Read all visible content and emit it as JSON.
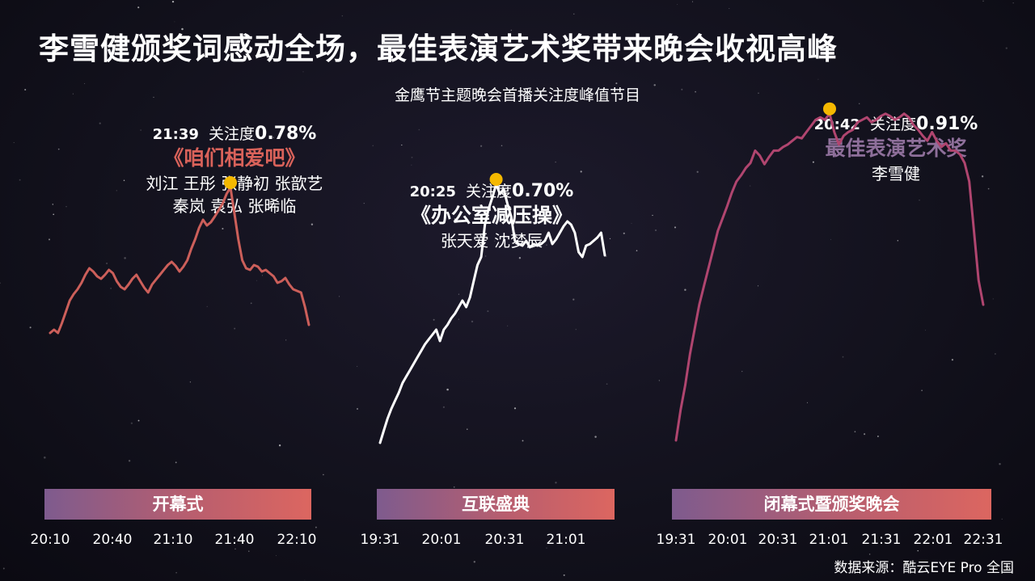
{
  "header": {
    "title": "李雪健颁奖词感动全场，最佳表演艺术奖带来晚会收视高峰",
    "subtitle": "金鹰节主题晚会首播关注度峰值节目"
  },
  "source": "数据来源：酷云EYE Pro 全国",
  "colors": {
    "chart1": "#cc5f5a",
    "chart2": "#ffffff",
    "chart3": "#b0456f",
    "peak": "#f5b800",
    "award_title": "#8e6f9a",
    "prog1": "#d9625a"
  },
  "chart_data": [
    {
      "type": "line",
      "name": "开幕式",
      "x_ticks": [
        "20:10",
        "20:40",
        "21:10",
        "21:40",
        "22:10"
      ],
      "x_range": [
        0,
        120
      ],
      "ylim": [
        0.5,
        0.8
      ],
      "values": [
        0.6,
        0.604,
        0.6,
        0.612,
        0.626,
        0.64,
        0.648,
        0.654,
        0.662,
        0.672,
        0.68,
        0.676,
        0.67,
        0.667,
        0.672,
        0.678,
        0.674,
        0.664,
        0.657,
        0.654,
        0.66,
        0.667,
        0.672,
        0.664,
        0.656,
        0.65,
        0.66,
        0.666,
        0.672,
        0.678,
        0.684,
        0.688,
        0.683,
        0.676,
        0.682,
        0.69,
        0.704,
        0.716,
        0.73,
        0.74,
        0.733,
        0.737,
        0.744,
        0.752,
        0.76,
        0.772,
        0.78,
        0.748,
        0.716,
        0.69,
        0.68,
        0.678,
        0.684,
        0.682,
        0.676,
        0.678,
        0.674,
        0.67,
        0.662,
        0.664,
        0.668,
        0.66,
        0.654,
        0.652,
        0.65,
        0.632,
        0.61
      ],
      "peak": {
        "time": "21:39",
        "label": "关注度",
        "value": "0.78%",
        "program": "《咱们相爱吧》",
        "people": [
          "刘江  王彤  张静初  张歆艺",
          "秦岚  袁弘  张晞临"
        ]
      }
    },
    {
      "type": "line",
      "name": "互联盛典",
      "x_ticks": [
        "19:31",
        "20:01",
        "20:31",
        "21:01"
      ],
      "x_range": [
        0,
        90
      ],
      "ylim": [
        0.3,
        0.8
      ],
      "values": [
        0.38,
        0.395,
        0.41,
        0.422,
        0.432,
        0.442,
        0.454,
        0.462,
        0.47,
        0.478,
        0.486,
        0.494,
        0.502,
        0.508,
        0.514,
        0.52,
        0.506,
        0.52,
        0.526,
        0.534,
        0.54,
        0.548,
        0.556,
        0.548,
        0.56,
        0.58,
        0.6,
        0.61,
        0.65,
        0.67,
        0.684,
        0.7,
        0.688,
        0.694,
        0.676,
        0.66,
        0.63,
        0.626,
        0.624,
        0.63,
        0.622,
        0.626,
        0.624,
        0.626,
        0.63,
        0.64,
        0.626,
        0.632,
        0.64,
        0.648,
        0.654,
        0.65,
        0.64,
        0.616,
        0.61,
        0.624,
        0.626,
        0.63,
        0.634,
        0.64,
        0.612
      ],
      "peak": {
        "time": "20:25",
        "label": "关注度",
        "value": "0.70%",
        "program": "《办公室减压操》",
        "people": [
          "张天爱  沈梦辰"
        ]
      }
    },
    {
      "type": "line",
      "name": "闭幕式暨颁奖晚会",
      "x_ticks": [
        "19:31",
        "20:01",
        "20:31",
        "21:01",
        "21:31",
        "22:01",
        "22:31"
      ],
      "x_range": [
        0,
        180
      ],
      "ylim": [
        0.3,
        1.0
      ],
      "values": [
        0.38,
        0.43,
        0.47,
        0.52,
        0.56,
        0.6,
        0.63,
        0.66,
        0.69,
        0.72,
        0.74,
        0.76,
        0.782,
        0.8,
        0.81,
        0.822,
        0.83,
        0.85,
        0.842,
        0.828,
        0.84,
        0.85,
        0.85,
        0.856,
        0.86,
        0.866,
        0.872,
        0.87,
        0.88,
        0.89,
        0.9,
        0.904,
        0.9,
        0.91,
        0.88,
        0.86,
        0.874,
        0.88,
        0.884,
        0.896,
        0.9,
        0.904,
        0.896,
        0.9,
        0.906,
        0.91,
        0.906,
        0.9,
        0.904,
        0.91,
        0.904,
        0.892,
        0.884,
        0.874,
        0.866,
        0.88,
        0.866,
        0.856,
        0.862,
        0.85,
        0.85,
        0.844,
        0.83,
        0.8,
        0.72,
        0.64,
        0.6
      ],
      "peak": {
        "time": "20:42",
        "label": "关注度",
        "value": "0.91%",
        "program": "最佳表演艺术奖",
        "people": [
          "李雪健"
        ]
      }
    }
  ]
}
